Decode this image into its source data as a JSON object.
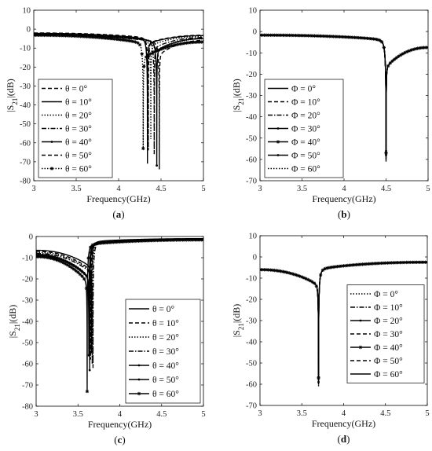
{
  "figure": {
    "charts": [
      {
        "panel_label": "(a)",
        "type": "line",
        "xlabel": "Frequency(GHz)",
        "ylabel": "|S21|(dB)",
        "xlim": [
          3,
          5
        ],
        "ylim": [
          -80,
          10
        ],
        "xticks": [
          "3",
          "3.5",
          "4",
          "4.5",
          "5"
        ],
        "yticks": [
          "10",
          "0",
          "-10",
          "-20",
          "-30",
          "-40",
          "-50",
          "-60",
          "-70",
          "-80"
        ],
        "legend_position": "bottom-left",
        "series": [
          {
            "name": "θ = 0°",
            "dash": "5,3",
            "marker": "none",
            "f0": 4.35,
            "min": -64,
            "edge3": -2.0,
            "edge5": -3.2
          },
          {
            "name": "θ = 10°",
            "dash": "",
            "marker": "none",
            "f0": 4.34,
            "min": -71,
            "edge3": -2.2,
            "edge5": -3.4
          },
          {
            "name": "θ = 20°",
            "dash": "1.5,2",
            "marker": "none",
            "f0": 4.38,
            "min": -58,
            "edge3": -2.4,
            "edge5": -3.8
          },
          {
            "name": "θ = 30°",
            "dash": "6,2,1.5,2",
            "marker": "none",
            "f0": 4.42,
            "min": -66,
            "edge3": -2.6,
            "edge5": -4.4
          },
          {
            "name": "θ = 40°",
            "dash": "",
            "marker": "dot",
            "f0": 4.45,
            "min": -72,
            "edge3": -2.8,
            "edge5": -5.0
          },
          {
            "name": "θ = 50°",
            "dash": "5,3",
            "marker": "none",
            "f0": 4.48,
            "min": -74,
            "edge3": -3.0,
            "edge5": -6.0
          },
          {
            "name": "θ = 60°",
            "dash": "1.5,2",
            "marker": "star",
            "f0": 4.29,
            "min": -63,
            "edge3": -3.2,
            "edge5": -6.8
          }
        ]
      },
      {
        "panel_label": "(b)",
        "type": "line",
        "xlabel": "Frequency(GHz)",
        "ylabel": "|S21|(dB)",
        "xlim": [
          3,
          5
        ],
        "ylim": [
          -70,
          10
        ],
        "xticks": [
          "3",
          "3.5",
          "4",
          "4.5",
          "5"
        ],
        "yticks": [
          "10",
          "0",
          "-10",
          "-20",
          "-30",
          "-40",
          "-50",
          "-60",
          "-70"
        ],
        "legend_position": "bottom-left",
        "series": [
          {
            "name": "Φ = 0°",
            "dash": "",
            "marker": "none",
            "f0": 4.5,
            "min": -61,
            "edge3": -1.7,
            "edge5": -7.5
          },
          {
            "name": "Φ = 10°",
            "dash": "5,3",
            "marker": "none",
            "f0": 4.5,
            "min": -60,
            "edge3": -1.7,
            "edge5": -7.5
          },
          {
            "name": "Φ = 20°",
            "dash": "6,2,1.5,2",
            "marker": "none",
            "f0": 4.5,
            "min": -59,
            "edge3": -1.7,
            "edge5": -7.5
          },
          {
            "name": "Φ = 30°",
            "dash": "",
            "marker": "dot",
            "f0": 4.5,
            "min": -58,
            "edge3": -1.7,
            "edge5": -7.5
          },
          {
            "name": "Φ = 40°",
            "dash": "",
            "marker": "star",
            "f0": 4.5,
            "min": -57,
            "edge3": -1.7,
            "edge5": -7.5
          },
          {
            "name": "Φ = 50°",
            "dash": "",
            "marker": "dot",
            "f0": 4.5,
            "min": -56,
            "edge3": -1.7,
            "edge5": -7.5
          },
          {
            "name": "Φ = 60°",
            "dash": "1.5,2",
            "marker": "none",
            "f0": 4.5,
            "min": -55,
            "edge3": -1.7,
            "edge5": -7.5
          }
        ]
      },
      {
        "panel_label": "(c)",
        "type": "line",
        "xlabel": "Frequency(GHz)",
        "ylabel": "|S21|(dB)",
        "xlim": [
          3,
          5
        ],
        "ylim": [
          -80,
          0
        ],
        "xticks": [
          "3",
          "3.5",
          "4",
          "4.5",
          "5"
        ],
        "yticks": [
          "0",
          "-10",
          "-20",
          "-30",
          "-40",
          "-50",
          "-60",
          "-70",
          "-80"
        ],
        "legend_position": "bottom-right",
        "series": [
          {
            "name": "θ = 0°",
            "dash": "",
            "marker": "none",
            "f0": 3.66,
            "min": -55,
            "edge3": -6.5,
            "edge5": -1.0
          },
          {
            "name": "θ = 10°",
            "dash": "5,3",
            "marker": "none",
            "f0": 3.65,
            "min": -58,
            "edge3": -7.0,
            "edge5": -1.1
          },
          {
            "name": "θ = 20°",
            "dash": "1.5,2",
            "marker": "none",
            "f0": 3.67,
            "min": -60,
            "edge3": -7.5,
            "edge5": -1.2
          },
          {
            "name": "θ = 30°",
            "dash": "6,2,1.5,2",
            "marker": "none",
            "f0": 3.68,
            "min": -62,
            "edge3": -8.0,
            "edge5": -1.3
          },
          {
            "name": "θ = 40°",
            "dash": "",
            "marker": "dot",
            "f0": 3.63,
            "min": -56,
            "edge3": -8.5,
            "edge5": -1.4
          },
          {
            "name": "θ = 50°",
            "dash": "",
            "marker": "dot",
            "f0": 3.64,
            "min": -63,
            "edge3": -9.0,
            "edge5": -1.5
          },
          {
            "name": "θ = 60°",
            "dash": "",
            "marker": "star",
            "f0": 3.61,
            "min": -73,
            "edge3": -9.5,
            "edge5": -1.6
          }
        ]
      },
      {
        "panel_label": "(d)",
        "type": "line",
        "xlabel": "Frequency(GHz)",
        "ylabel": "|S21|(dB)",
        "xlim": [
          3,
          5
        ],
        "ylim": [
          -70,
          10
        ],
        "xticks": [
          "3",
          "3.5",
          "4",
          "4.5",
          "5"
        ],
        "yticks": [
          "10",
          "0",
          "-10",
          "-20",
          "-30",
          "-40",
          "-50",
          "-60",
          "-70"
        ],
        "legend_position": "right",
        "series": [
          {
            "name": "Φ = 0°",
            "dash": "1.5,2",
            "marker": "none",
            "f0": 3.7,
            "min": -61,
            "edge3": -6.0,
            "edge5": -2.5
          },
          {
            "name": "Φ = 10°",
            "dash": "6,2,1.5,2",
            "marker": "none",
            "f0": 3.7,
            "min": -60,
            "edge3": -6.0,
            "edge5": -2.5
          },
          {
            "name": "Φ = 20°",
            "dash": "",
            "marker": "dot",
            "f0": 3.7,
            "min": -59,
            "edge3": -6.0,
            "edge5": -2.5
          },
          {
            "name": "Φ = 30°",
            "dash": "5,3",
            "marker": "none",
            "f0": 3.7,
            "min": -58,
            "edge3": -6.0,
            "edge5": -2.5
          },
          {
            "name": "Φ = 40°",
            "dash": "",
            "marker": "star",
            "f0": 3.7,
            "min": -57,
            "edge3": -6.0,
            "edge5": -2.5
          },
          {
            "name": "Φ = 50°",
            "dash": "5,3",
            "marker": "none",
            "f0": 3.7,
            "min": -56,
            "edge3": -6.0,
            "edge5": -2.5
          },
          {
            "name": "Φ = 60°",
            "dash": "",
            "marker": "none",
            "f0": 3.7,
            "min": -55,
            "edge3": -6.0,
            "edge5": -2.5
          }
        ]
      }
    ]
  }
}
